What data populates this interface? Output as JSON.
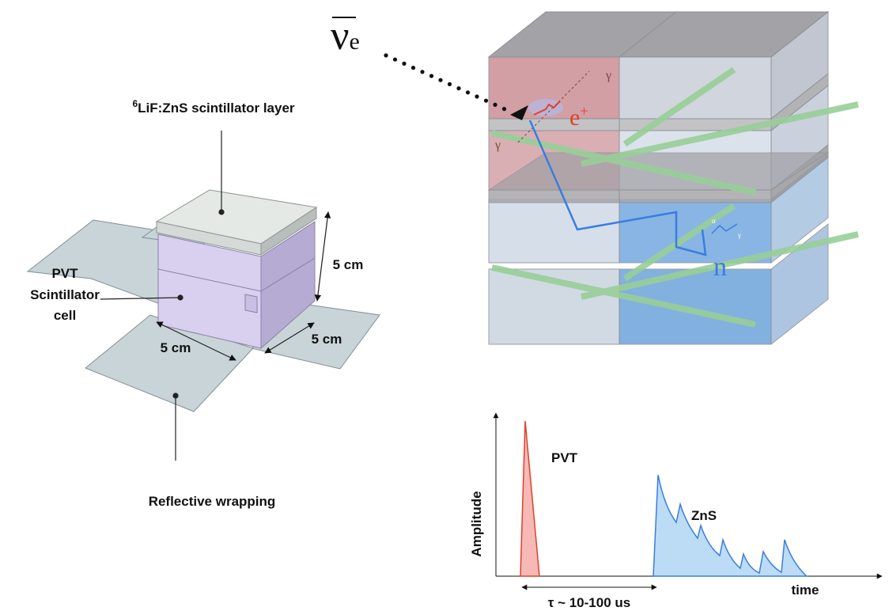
{
  "detector": {
    "neutrino": {
      "symbol": "ν",
      "subscript": "e"
    },
    "gamma_labels": [
      "γ",
      "γ"
    ],
    "positron": {
      "symbol": "e",
      "superscript": "+"
    },
    "neutron": "n",
    "capture_labels": [
      "α",
      "γ"
    ]
  },
  "cell": {
    "layer_label": {
      "superscript": "6",
      "text": "LiF:ZnS scintillator layer"
    },
    "pvt_label": [
      "PVT",
      "Scintillator",
      "cell"
    ],
    "dimensions": [
      "5 cm",
      "5 cm",
      "5 cm"
    ],
    "wrapping_label": "Reflective wrapping"
  },
  "pulse_plot": {
    "y_label": "Amplitude",
    "x_label": "time",
    "pulse_labels": [
      "PVT",
      "ZnS"
    ],
    "delay_label": "τ ~ 10-100 us"
  }
}
